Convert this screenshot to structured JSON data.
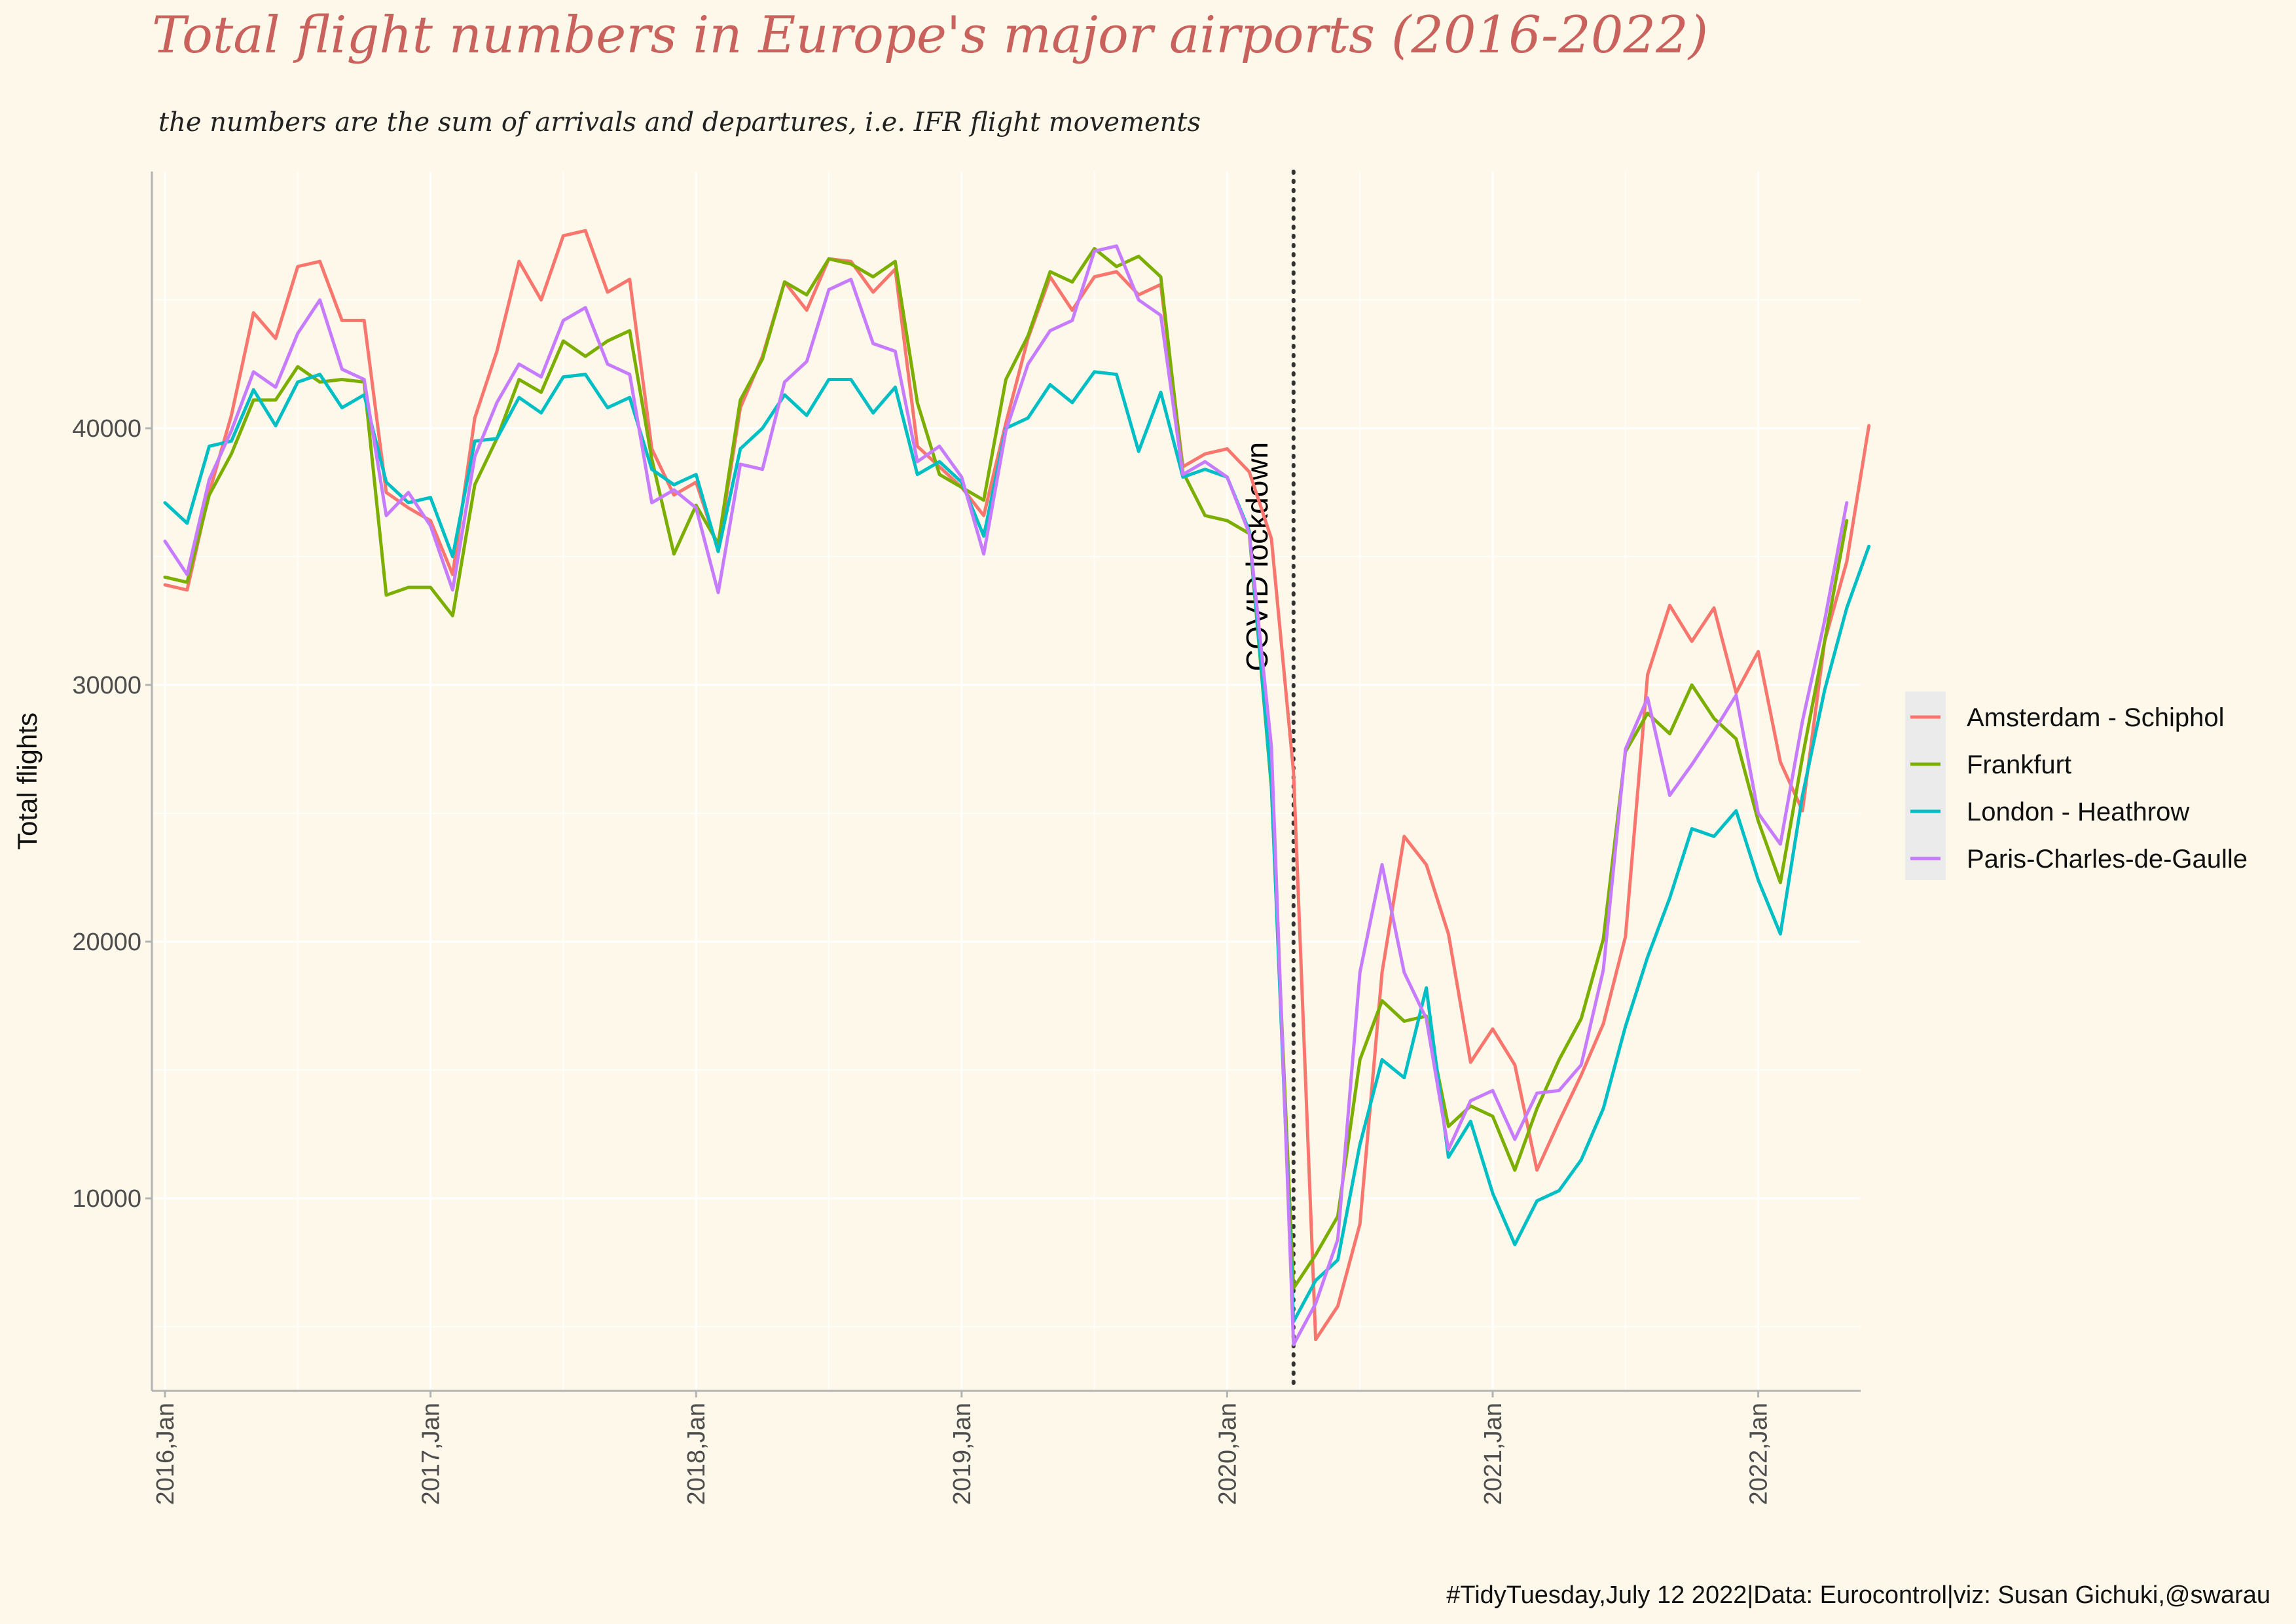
{
  "chart_data": {
    "type": "line",
    "title": "Total flight numbers in Europe's major airports (2016-2022)",
    "subtitle": "the numbers are the sum of arrivals and departures, i.e. IFR flight movements",
    "ylabel": "Total flights",
    "xlabel": "",
    "caption": "#TidyTuesday,July 12 2022|Data: Eurocontrol|viz: Susan Gichuki,@swarau",
    "annotation": {
      "label": "COVID lockdown",
      "x": "2020-04"
    },
    "x_start": "2016-01",
    "x_ticks": [
      "2016,Jan",
      "2017,Jan",
      "2018,Jan",
      "2019,Jan",
      "2020,Jan",
      "2021,Jan",
      "2022,Jan"
    ],
    "y_ticks": [
      10000,
      20000,
      30000,
      40000
    ],
    "ylim": [
      2500,
      50000
    ],
    "grid": true,
    "legend_position": "right",
    "series": [
      {
        "name": "Amsterdam - Schiphol",
        "color": "#f8766d",
        "values": [
          33900,
          33700,
          37500,
          40500,
          44500,
          43500,
          46300,
          46500,
          44200,
          44200,
          37500,
          36900,
          36400,
          34300,
          40400,
          43000,
          46500,
          45000,
          47500,
          47700,
          45300,
          45800,
          39200,
          37400,
          37900,
          35300,
          40800,
          42800,
          45700,
          44600,
          46600,
          46500,
          45300,
          46200,
          39300,
          38500,
          37700,
          36600,
          40200,
          43500,
          45900,
          44600,
          45900,
          46100,
          45200,
          45600,
          38500,
          39000,
          39200,
          38300,
          35700,
          26600,
          4500,
          5800,
          9000,
          18800,
          24100,
          23000,
          20300,
          15300,
          16600,
          15200,
          11100,
          13000,
          14800,
          16800,
          20200,
          30400,
          33100,
          31700,
          33000,
          29700,
          31300,
          27000,
          25100,
          31700,
          34800,
          40100
        ]
      },
      {
        "name": "Frankfurt",
        "color": "#7cae00",
        "values": [
          34200,
          34000,
          37400,
          39000,
          41100,
          41100,
          42400,
          41800,
          41900,
          41800,
          33500,
          33800,
          33800,
          32700,
          37800,
          39600,
          41900,
          41400,
          43400,
          42800,
          43400,
          43800,
          38800,
          35100,
          37000,
          35500,
          41100,
          42700,
          45700,
          45200,
          46600,
          46400,
          45900,
          46500,
          41000,
          38200,
          37700,
          37200,
          41900,
          43600,
          46100,
          45700,
          47000,
          46300,
          46700,
          45900,
          38300,
          36600,
          36400,
          35900,
          26000,
          6500,
          7800,
          9300,
          15400,
          17700,
          16900,
          17100,
          12800,
          13600,
          13200,
          11100,
          13500,
          15400,
          17000,
          20100,
          27400,
          28900,
          28100,
          30000,
          28700,
          27900,
          24700,
          22300,
          27200,
          31700,
          36400
        ]
      },
      {
        "name": "London - Heathrow",
        "color": "#00bfc4",
        "values": [
          37100,
          36300,
          39300,
          39500,
          41500,
          40100,
          41800,
          42100,
          40800,
          41300,
          37900,
          37100,
          37300,
          35000,
          39500,
          39600,
          41200,
          40600,
          42000,
          42100,
          40800,
          41200,
          38400,
          37800,
          38200,
          35200,
          39200,
          40000,
          41300,
          40500,
          41900,
          41900,
          40600,
          41600,
          38200,
          38700,
          37900,
          35800,
          40000,
          40400,
          41700,
          41000,
          42200,
          42100,
          39100,
          41400,
          38100,
          38400,
          38100,
          36000,
          26100,
          5200,
          6800,
          7600,
          12100,
          15400,
          14700,
          18200,
          11600,
          13000,
          10200,
          8200,
          9900,
          10300,
          11500,
          13500,
          16700,
          19400,
          21700,
          24400,
          24100,
          25100,
          22400,
          20300,
          25700,
          29800,
          33000,
          35400
        ]
      },
      {
        "name": "Paris-Charles-de-Gaulle",
        "color": "#c77cff",
        "values": [
          35600,
          34300,
          38000,
          39900,
          42200,
          41600,
          43700,
          45000,
          42300,
          41900,
          36600,
          37500,
          36200,
          33700,
          38900,
          41000,
          42500,
          42000,
          44200,
          44700,
          42500,
          42100,
          37100,
          37600,
          36900,
          33600,
          38600,
          38400,
          41800,
          42600,
          45400,
          45800,
          43300,
          43000,
          38700,
          39300,
          38100,
          35100,
          39900,
          42500,
          43800,
          44200,
          46900,
          47100,
          45000,
          44400,
          38200,
          38700,
          38100,
          35900,
          27600,
          4300,
          5900,
          8400,
          18800,
          23000,
          18800,
          17000,
          11900,
          13800,
          14200,
          12300,
          14100,
          14200,
          15200,
          18900,
          27500,
          29500,
          25700,
          26900,
          28200,
          29600,
          25000,
          23800,
          28600,
          32500,
          37100
        ]
      }
    ]
  }
}
